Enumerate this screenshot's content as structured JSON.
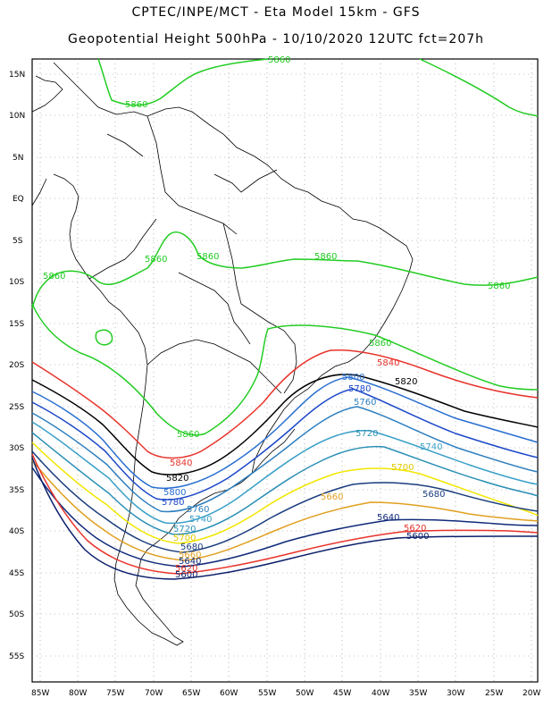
{
  "header": {
    "title_line1": "CPTEC/INPE/MCT  -  Eta Model 15km - GFS",
    "title_line2": "Geopotential Height 500hPa - 10/10/2020 12UTC fct=207h"
  },
  "axes": {
    "lat_labels": [
      "15N",
      "10N",
      "5N",
      "EQ",
      "5S",
      "10S",
      "15S",
      "20S",
      "25S",
      "30S",
      "35S",
      "40S",
      "45S",
      "50S",
      "55S"
    ],
    "lon_labels": [
      "85W",
      "80W",
      "75W",
      "70W",
      "65W",
      "60W",
      "55W",
      "50W",
      "45W",
      "40W",
      "35W",
      "30W",
      "25W",
      "20W"
    ]
  },
  "contour_colors": {
    "5600": "#0b1f6b",
    "5620": "#e8332b",
    "5640": "#0f2a7a",
    "5660": "#e0a020",
    "5680": "#1a3d7c",
    "5700": "#f2e600",
    "5720": "#2a8fb5",
    "5740": "#3aa0c8",
    "5760": "#2e7fbf",
    "5780": "#1c48c8",
    "5800": "#2a6fd0",
    "5820": "#000000",
    "5840": "#e8332b",
    "5860": "#22cc22"
  },
  "contour_labels": [
    {
      "text": "5860",
      "color": "#22cc22",
      "id": "lbl-5860-a"
    },
    {
      "text": "5860",
      "color": "#22cc22",
      "id": "lbl-5860-b"
    },
    {
      "text": "5860",
      "color": "#22cc22",
      "id": "lbl-5860-c"
    },
    {
      "text": "5860",
      "color": "#22cc22",
      "id": "lbl-5860-d"
    },
    {
      "text": "5860",
      "color": "#22cc22",
      "id": "lbl-5860-e"
    },
    {
      "text": "5860",
      "color": "#22cc22",
      "id": "lbl-5860-f"
    },
    {
      "text": "5860",
      "color": "#22cc22",
      "id": "lbl-5860-g"
    },
    {
      "text": "5860",
      "color": "#22cc22",
      "id": "lbl-5860-h"
    },
    {
      "text": "5860",
      "color": "#22cc22",
      "id": "lbl-5860-i"
    },
    {
      "text": "5840",
      "color": "#e8332b",
      "id": "lbl-5840-a"
    },
    {
      "text": "5840",
      "color": "#e8332b",
      "id": "lbl-5840-b"
    },
    {
      "text": "5820",
      "color": "#000000",
      "id": "lbl-5820-a"
    },
    {
      "text": "5820",
      "color": "#000000",
      "id": "lbl-5820-b"
    },
    {
      "text": "5800",
      "color": "#2a6fd0",
      "id": "lbl-5800-a"
    },
    {
      "text": "5800",
      "color": "#2a6fd0",
      "id": "lbl-5800-b"
    },
    {
      "text": "5780",
      "color": "#1c48c8",
      "id": "lbl-5780-a"
    },
    {
      "text": "5780",
      "color": "#1c48c8",
      "id": "lbl-5780-b"
    },
    {
      "text": "5760",
      "color": "#2e7fbf",
      "id": "lbl-5760-a"
    },
    {
      "text": "5760",
      "color": "#2e7fbf",
      "id": "lbl-5760-b"
    },
    {
      "text": "5740",
      "color": "#3aa0c8",
      "id": "lbl-5740-a"
    },
    {
      "text": "5740",
      "color": "#3aa0c8",
      "id": "lbl-5740-b"
    },
    {
      "text": "5720",
      "color": "#2a8fb5",
      "id": "lbl-5720-a"
    },
    {
      "text": "5720",
      "color": "#2a8fb5",
      "id": "lbl-5720-b"
    },
    {
      "text": "5700",
      "color": "#e0c800",
      "id": "lbl-5700-a"
    },
    {
      "text": "5700",
      "color": "#e0c800",
      "id": "lbl-5700-b"
    },
    {
      "text": "5680",
      "color": "#1a3d7c",
      "id": "lbl-5680-a"
    },
    {
      "text": "5680",
      "color": "#1a3d7c",
      "id": "lbl-5680-b"
    },
    {
      "text": "5660",
      "color": "#e0a020",
      "id": "lbl-5660-a"
    },
    {
      "text": "5660",
      "color": "#e0a020",
      "id": "lbl-5660-b"
    },
    {
      "text": "5640",
      "color": "#0f2a7a",
      "id": "lbl-5640-a"
    },
    {
      "text": "5640",
      "color": "#0f2a7a",
      "id": "lbl-5640-b"
    },
    {
      "text": "5620",
      "color": "#e8332b",
      "id": "lbl-5620-a"
    },
    {
      "text": "5620",
      "color": "#e8332b",
      "id": "lbl-5620-b"
    },
    {
      "text": "5600",
      "color": "#0b1f6b",
      "id": "lbl-5600-a"
    },
    {
      "text": "5600",
      "color": "#0b1f6b",
      "id": "lbl-5600-b"
    }
  ]
}
